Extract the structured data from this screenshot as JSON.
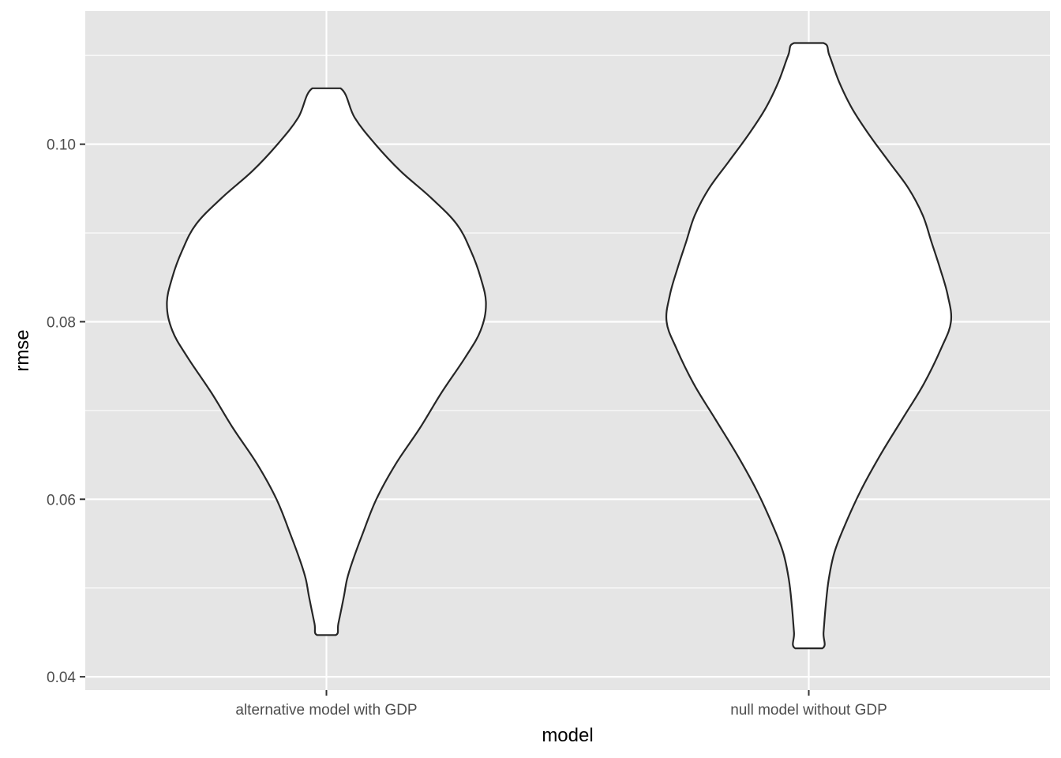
{
  "chart_data": {
    "type": "violin",
    "xlabel": "model",
    "ylabel": "rmse",
    "categories": [
      "alternative model with GDP",
      "null model without GDP"
    ],
    "ylim": [
      0.0385,
      0.115
    ],
    "y_ticks": [
      0.04,
      0.06,
      0.08,
      0.1
    ],
    "y_tick_labels": [
      "0.04",
      "0.06",
      "0.08",
      "0.10"
    ],
    "grid": true,
    "colors": {
      "panel": "#e5e5e5",
      "grid": "#ffffff",
      "fill": "#ffffff",
      "outline": "#262626"
    },
    "series": [
      {
        "category": "alternative model with GDP",
        "y_min": 0.0447,
        "y_max": 0.1063,
        "density_profile": [
          [
            0.0447,
            0.043
          ],
          [
            0.046,
            0.055
          ],
          [
            0.049,
            0.08
          ],
          [
            0.051,
            0.095
          ],
          [
            0.053,
            0.12
          ],
          [
            0.056,
            0.165
          ],
          [
            0.06,
            0.23
          ],
          [
            0.064,
            0.32
          ],
          [
            0.068,
            0.43
          ],
          [
            0.072,
            0.53
          ],
          [
            0.076,
            0.64
          ],
          [
            0.079,
            0.71
          ],
          [
            0.082,
            0.735
          ],
          [
            0.085,
            0.71
          ],
          [
            0.088,
            0.665
          ],
          [
            0.091,
            0.6
          ],
          [
            0.094,
            0.48
          ],
          [
            0.097,
            0.34
          ],
          [
            0.1,
            0.225
          ],
          [
            0.103,
            0.13
          ],
          [
            0.1063,
            0.065
          ]
        ]
      },
      {
        "category": "null model without GDP",
        "y_min": 0.0432,
        "y_max": 0.1114,
        "density_profile": [
          [
            0.0432,
            0.062
          ],
          [
            0.045,
            0.068
          ],
          [
            0.048,
            0.078
          ],
          [
            0.051,
            0.092
          ],
          [
            0.054,
            0.118
          ],
          [
            0.057,
            0.165
          ],
          [
            0.061,
            0.24
          ],
          [
            0.065,
            0.33
          ],
          [
            0.069,
            0.43
          ],
          [
            0.073,
            0.53
          ],
          [
            0.077,
            0.61
          ],
          [
            0.08,
            0.655
          ],
          [
            0.083,
            0.64
          ],
          [
            0.086,
            0.605
          ],
          [
            0.089,
            0.565
          ],
          [
            0.092,
            0.525
          ],
          [
            0.095,
            0.46
          ],
          [
            0.098,
            0.37
          ],
          [
            0.101,
            0.28
          ],
          [
            0.104,
            0.2
          ],
          [
            0.107,
            0.14
          ],
          [
            0.11,
            0.095
          ],
          [
            0.1114,
            0.067
          ]
        ]
      }
    ]
  }
}
